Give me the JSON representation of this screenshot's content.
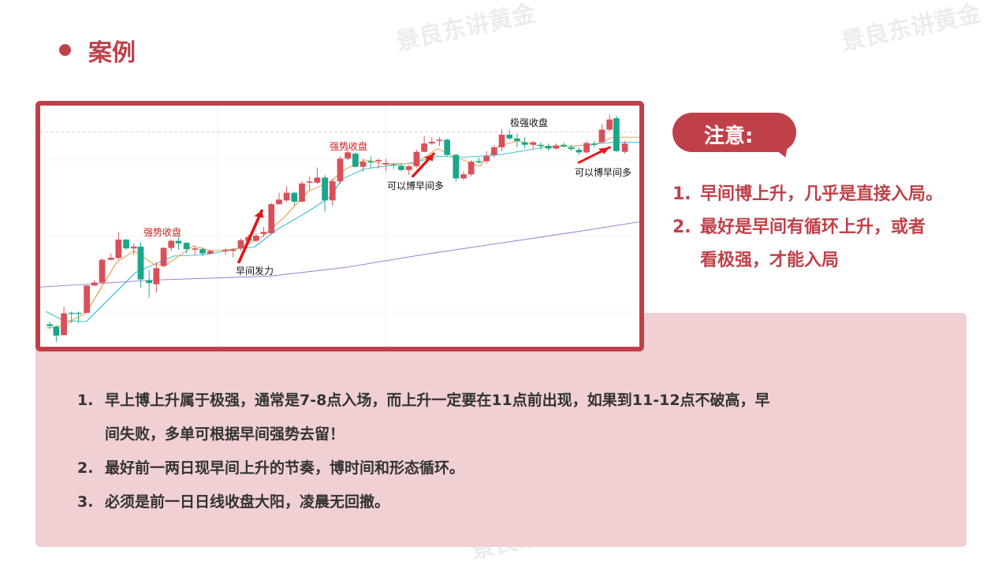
{
  "watermark": "景良东讲黄金",
  "title": "案例",
  "chart": {
    "labels": {
      "strong_close_1": "强势收盘",
      "strong_close_2": "强势收盘",
      "morning_push": "早间发力",
      "can_bet_morning_long_1": "可以博早间多",
      "can_bet_morning_long_2": "可以博早间多",
      "extreme_close": "极强收盘"
    },
    "colors": {
      "up": "#d9505a",
      "down": "#1aa68a",
      "ma_short": "#f0a050",
      "ma_mid": "#3bbfd0",
      "ma_long": "#9a7ad8",
      "arrow": "#e01818"
    }
  },
  "notice": {
    "heading": "注意:",
    "items": [
      {
        "num": "1.",
        "text": "早间博上升，几乎是直接入局。"
      },
      {
        "num": "2.",
        "text": "最好是早间有循环上升，或者"
      },
      {
        "num": "",
        "text": "看极强，才能入局"
      }
    ]
  },
  "points": [
    {
      "num": "1.",
      "text": "早上博上升属于极强，通常是7-8点入场，而上升一定要在11点前出现，如果到11-12点不破高，早"
    },
    {
      "num": "",
      "text": "间失败，多单可根据早间强势去留！"
    },
    {
      "num": "2.",
      "text": "最好前一两日现早间上升的节奏，博时间和形态循环。"
    },
    {
      "num": "3.",
      "text": "必须是前一日日线收盘大阳，凌晨无回撤。"
    }
  ],
  "accent": "#c0404a"
}
